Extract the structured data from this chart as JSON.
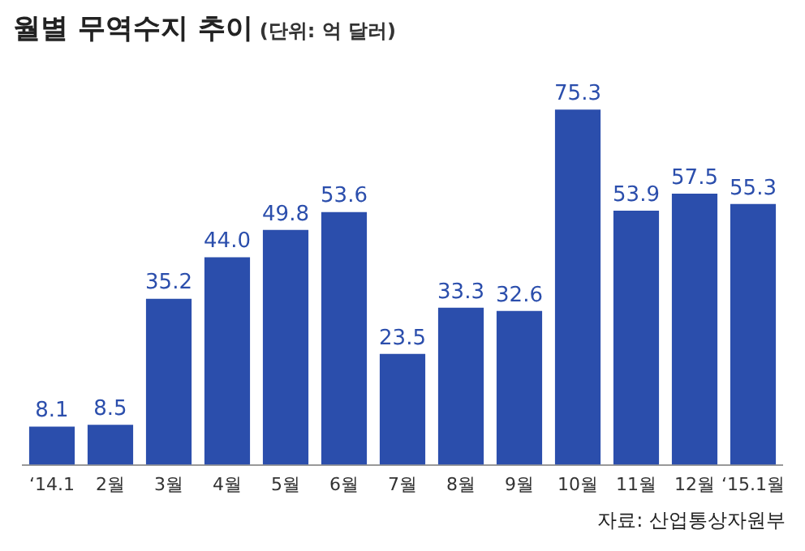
{
  "chart_data": {
    "type": "bar",
    "title": "월별 무역수지 추이",
    "subtitle": "(단위: 억 달러)",
    "categories": [
      "‘14.1",
      "2월",
      "3월",
      "4월",
      "5월",
      "6월",
      "7월",
      "8월",
      "9월",
      "10월",
      "11월",
      "12월",
      "‘15.1월"
    ],
    "values": [
      8.1,
      8.5,
      35.2,
      44.0,
      49.8,
      53.6,
      23.5,
      33.3,
      32.6,
      75.3,
      53.9,
      57.5,
      55.3
    ],
    "value_labels": [
      "8.1",
      "8.5",
      "35.2",
      "44.0",
      "49.8",
      "53.6",
      "23.5",
      "33.3",
      "32.6",
      "75.3",
      "53.9",
      "57.5",
      "55.3"
    ],
    "color": "#2b4eac",
    "grid": false,
    "legend": false,
    "annotations": [
      "자료: 산업통상자원부"
    ]
  }
}
